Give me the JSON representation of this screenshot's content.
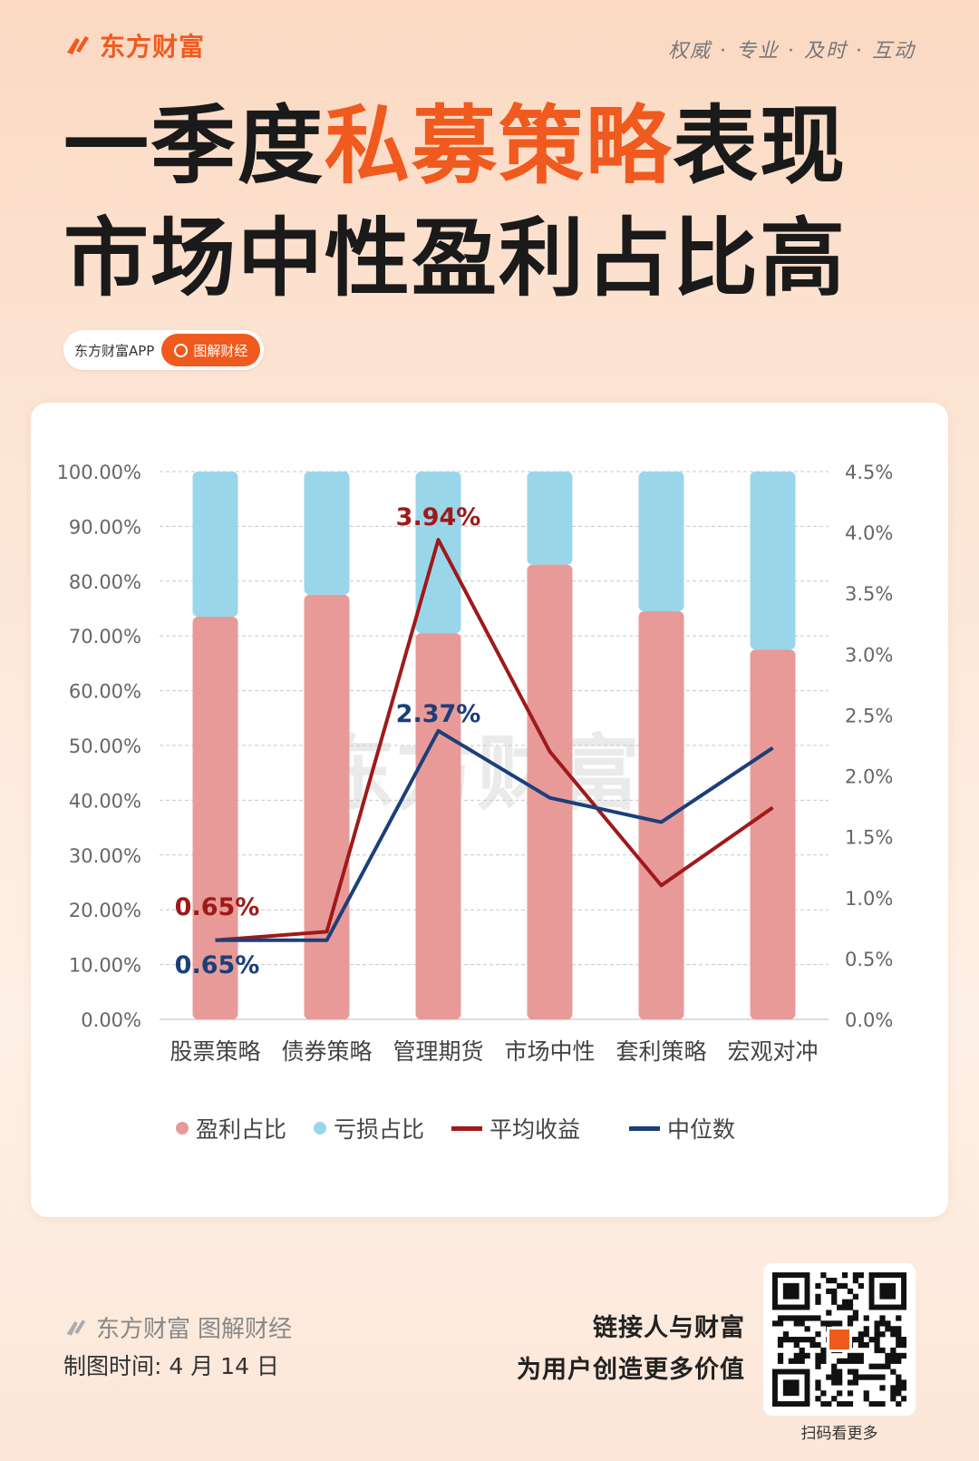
{
  "header": {
    "brand": "东方财富",
    "slogan": "权威 · 专业 · 及时 · 互动",
    "title_line1_pre": "一季度",
    "title_line1_hl": "私募策略",
    "title_line1_post": "表现",
    "title_line2": "市场中性盈利占比高"
  },
  "tag": {
    "app": "东方财富APP",
    "search": "图解财经"
  },
  "colors": {
    "accent": "#f05a1e",
    "profit": "#e89a98",
    "loss": "#9ad6ea",
    "avg": "#9e1a1a",
    "median": "#1b3f7a"
  },
  "chart_data": {
    "type": "bar",
    "stacked": true,
    "categories": [
      "股票策略",
      "债券策略",
      "管理期货",
      "市场中性",
      "套利策略",
      "宏观对冲"
    ],
    "series": [
      {
        "name": "盈利占比",
        "type": "bar",
        "axis": "left",
        "values": [
          73.5,
          77.5,
          70.5,
          83.0,
          74.5,
          67.5
        ]
      },
      {
        "name": "亏损占比",
        "type": "bar",
        "axis": "left",
        "values": [
          26.5,
          22.5,
          29.5,
          17.0,
          25.5,
          32.5
        ]
      },
      {
        "name": "平均收益",
        "type": "line",
        "axis": "right",
        "values": [
          0.65,
          0.72,
          3.94,
          2.2,
          1.1,
          1.74
        ]
      },
      {
        "name": "中位数",
        "type": "line",
        "axis": "right",
        "values": [
          0.65,
          0.65,
          2.37,
          1.82,
          1.62,
          2.23
        ]
      }
    ],
    "left_axis": {
      "ylim": [
        0,
        100
      ],
      "ticks": [
        "0.00%",
        "10.00%",
        "20.00%",
        "30.00%",
        "40.00%",
        "50.00%",
        "60.00%",
        "70.00%",
        "80.00%",
        "90.00%",
        "100.00%"
      ]
    },
    "right_axis": {
      "ylim": [
        0,
        4.5
      ],
      "ticks": [
        "0.0%",
        "0.5%",
        "1.0%",
        "1.5%",
        "2.0%",
        "2.5%",
        "3.0%",
        "3.5%",
        "4.0%",
        "4.5%"
      ]
    },
    "annotations": [
      {
        "text": "3.94%",
        "series": "平均收益",
        "index": 2
      },
      {
        "text": "2.37%",
        "series": "中位数",
        "index": 2
      },
      {
        "text": "0.65%",
        "series": "平均收益",
        "index": 0
      },
      {
        "text": "0.65%",
        "series": "中位数",
        "index": 0
      }
    ],
    "watermark": "东方财富",
    "grid": true,
    "legend_position": "bottom"
  },
  "footer": {
    "brand": "东方财富",
    "section": "图解财经",
    "date": "制图时间: 4 月 14 日",
    "motto1": "链接人与财富",
    "motto2": "为用户创造更多价值",
    "qr_caption": "扫码看更多"
  }
}
